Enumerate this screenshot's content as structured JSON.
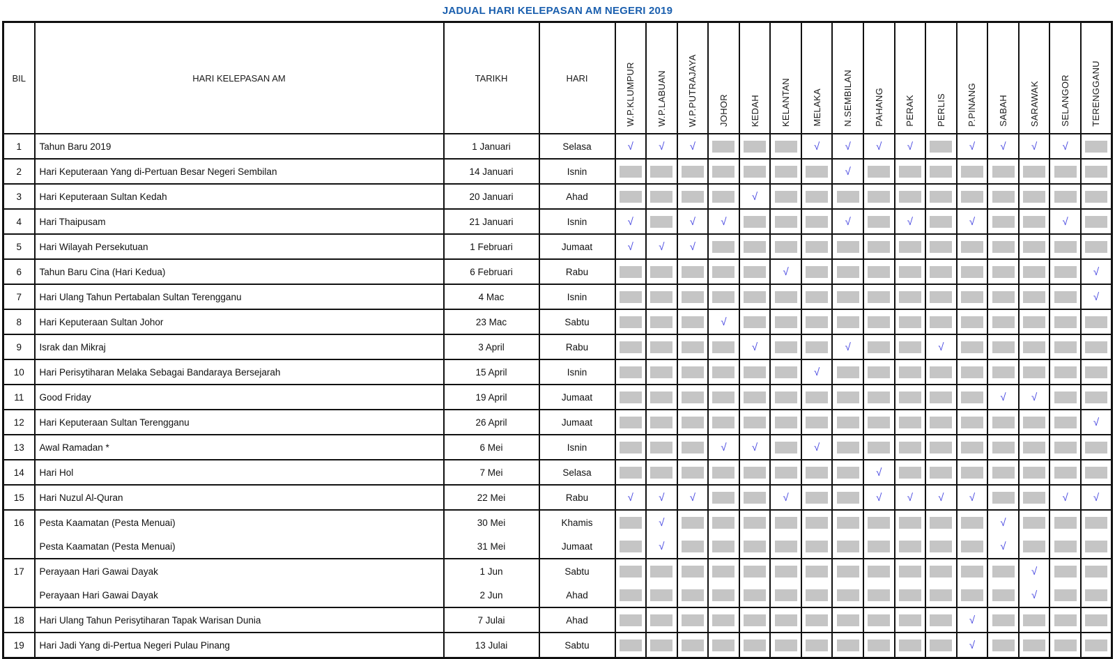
{
  "title": "JADUAL HARI KELEPASAN AM NEGERI 2019",
  "colors": {
    "title_blue": "#1a5fae",
    "check_blue": "#4646e0",
    "na_gray": "#c5c5c5",
    "border_black": "#111111"
  },
  "table": {
    "headers": {
      "bil": "BIL",
      "holiday": "HARI KELEPASAN AM",
      "date": "TARIKH",
      "day": "HARI"
    },
    "states": [
      "W.P.KLUMPUR",
      "W.P.LABUAN",
      "W.P.PUTRAJAYA",
      "JOHOR",
      "KEDAH",
      "KELANTAN",
      "MELAKA",
      "N.SEMBILAN",
      "PAHANG",
      "PERAK",
      "PERLIS",
      "P.PINANG",
      "SABAH",
      "SARAWAK",
      "SELANGOR",
      "TERENGGANU"
    ],
    "check_symbol": "√",
    "rows": [
      {
        "bil": "1",
        "entries": [
          {
            "name": "Tahun Baru 2019",
            "date": "1 Januari",
            "day": "Selasa"
          }
        ],
        "marks": [
          [
            1,
            1,
            1,
            0,
            0,
            0,
            1,
            1,
            1,
            1,
            0,
            1,
            1,
            1,
            1,
            0
          ]
        ]
      },
      {
        "bil": "2",
        "entries": [
          {
            "name": "Hari Keputeraan Yang di-Pertuan Besar Negeri Sembilan",
            "date": "14 Januari",
            "day": "Isnin"
          }
        ],
        "marks": [
          [
            0,
            0,
            0,
            0,
            0,
            0,
            0,
            1,
            0,
            0,
            0,
            0,
            0,
            0,
            0,
            0
          ]
        ]
      },
      {
        "bil": "3",
        "entries": [
          {
            "name": "Hari Keputeraan Sultan Kedah",
            "date": "20 Januari",
            "day": "Ahad"
          }
        ],
        "marks": [
          [
            0,
            0,
            0,
            0,
            1,
            0,
            0,
            0,
            0,
            0,
            0,
            0,
            0,
            0,
            0,
            0
          ]
        ]
      },
      {
        "bil": "4",
        "entries": [
          {
            "name": "Hari Thaipusam",
            "date": "21 Januari",
            "day": "Isnin"
          }
        ],
        "marks": [
          [
            1,
            0,
            1,
            1,
            0,
            0,
            0,
            1,
            0,
            1,
            0,
            1,
            0,
            0,
            1,
            0
          ]
        ]
      },
      {
        "bil": "5",
        "entries": [
          {
            "name": "Hari Wilayah Persekutuan",
            "date": "1 Februari",
            "day": "Jumaat"
          }
        ],
        "marks": [
          [
            1,
            1,
            1,
            0,
            0,
            0,
            0,
            0,
            0,
            0,
            0,
            0,
            0,
            0,
            0,
            0
          ]
        ]
      },
      {
        "bil": "6",
        "entries": [
          {
            "name": "Tahun Baru Cina (Hari Kedua)",
            "date": "6 Februari",
            "day": "Rabu"
          }
        ],
        "marks": [
          [
            0,
            0,
            0,
            0,
            0,
            1,
            0,
            0,
            0,
            0,
            0,
            0,
            0,
            0,
            0,
            1
          ]
        ]
      },
      {
        "bil": "7",
        "entries": [
          {
            "name": "Hari Ulang Tahun Pertabalan Sultan Terengganu",
            "date": "4 Mac",
            "day": "Isnin"
          }
        ],
        "marks": [
          [
            0,
            0,
            0,
            0,
            0,
            0,
            0,
            0,
            0,
            0,
            0,
            0,
            0,
            0,
            0,
            1
          ]
        ]
      },
      {
        "bil": "8",
        "entries": [
          {
            "name": "Hari Keputeraan Sultan Johor",
            "date": "23 Mac",
            "day": "Sabtu"
          }
        ],
        "marks": [
          [
            0,
            0,
            0,
            1,
            0,
            0,
            0,
            0,
            0,
            0,
            0,
            0,
            0,
            0,
            0,
            0
          ]
        ]
      },
      {
        "bil": "9",
        "entries": [
          {
            "name": "Israk dan Mikraj",
            "date": "3 April",
            "day": "Rabu"
          }
        ],
        "marks": [
          [
            0,
            0,
            0,
            0,
            1,
            0,
            0,
            1,
            0,
            0,
            1,
            0,
            0,
            0,
            0,
            0
          ]
        ]
      },
      {
        "bil": "10",
        "entries": [
          {
            "name": "Hari Perisytiharan Melaka Sebagai Bandaraya Bersejarah",
            "date": "15 April",
            "day": "Isnin"
          }
        ],
        "marks": [
          [
            0,
            0,
            0,
            0,
            0,
            0,
            1,
            0,
            0,
            0,
            0,
            0,
            0,
            0,
            0,
            0
          ]
        ]
      },
      {
        "bil": "11",
        "entries": [
          {
            "name": "Good Friday",
            "date": "19 April",
            "day": "Jumaat"
          }
        ],
        "marks": [
          [
            0,
            0,
            0,
            0,
            0,
            0,
            0,
            0,
            0,
            0,
            0,
            0,
            1,
            1,
            0,
            0
          ]
        ]
      },
      {
        "bil": "12",
        "entries": [
          {
            "name": "Hari Keputeraan Sultan Terengganu",
            "date": "26 April",
            "day": "Jumaat"
          }
        ],
        "marks": [
          [
            0,
            0,
            0,
            0,
            0,
            0,
            0,
            0,
            0,
            0,
            0,
            0,
            0,
            0,
            0,
            1
          ]
        ]
      },
      {
        "bil": "13",
        "entries": [
          {
            "name": "Awal Ramadan *",
            "date": "6 Mei",
            "day": "Isnin"
          }
        ],
        "marks": [
          [
            0,
            0,
            0,
            1,
            1,
            0,
            1,
            0,
            0,
            0,
            0,
            0,
            0,
            0,
            0,
            0
          ]
        ]
      },
      {
        "bil": "14",
        "entries": [
          {
            "name": "Hari Hol",
            "date": "7 Mei",
            "day": "Selasa"
          }
        ],
        "marks": [
          [
            0,
            0,
            0,
            0,
            0,
            0,
            0,
            0,
            1,
            0,
            0,
            0,
            0,
            0,
            0,
            0
          ]
        ]
      },
      {
        "bil": "15",
        "entries": [
          {
            "name": "Hari Nuzul Al-Quran",
            "date": "22 Mei",
            "day": "Rabu"
          }
        ],
        "marks": [
          [
            1,
            1,
            1,
            0,
            0,
            1,
            0,
            0,
            1,
            1,
            1,
            1,
            0,
            0,
            1,
            1
          ]
        ]
      },
      {
        "bil": "16",
        "entries": [
          {
            "name": "Pesta Kaamatan (Pesta Menuai)",
            "date": "30 Mei",
            "day": "Khamis"
          },
          {
            "name": "Pesta Kaamatan (Pesta Menuai)",
            "date": "31 Mei",
            "day": "Jumaat"
          }
        ],
        "marks": [
          [
            0,
            1,
            0,
            0,
            0,
            0,
            0,
            0,
            0,
            0,
            0,
            0,
            1,
            0,
            0,
            0
          ],
          [
            0,
            1,
            0,
            0,
            0,
            0,
            0,
            0,
            0,
            0,
            0,
            0,
            1,
            0,
            0,
            0
          ]
        ]
      },
      {
        "bil": "17",
        "entries": [
          {
            "name": "Perayaan Hari Gawai Dayak",
            "date": "1 Jun",
            "day": "Sabtu"
          },
          {
            "name": "Perayaan Hari Gawai Dayak",
            "date": "2 Jun",
            "day": "Ahad"
          }
        ],
        "marks": [
          [
            0,
            0,
            0,
            0,
            0,
            0,
            0,
            0,
            0,
            0,
            0,
            0,
            0,
            1,
            0,
            0
          ],
          [
            0,
            0,
            0,
            0,
            0,
            0,
            0,
            0,
            0,
            0,
            0,
            0,
            0,
            1,
            0,
            0
          ]
        ]
      },
      {
        "bil": "18",
        "entries": [
          {
            "name": "Hari Ulang Tahun Perisytiharan Tapak Warisan Dunia",
            "date": "7 Julai",
            "day": "Ahad"
          }
        ],
        "marks": [
          [
            0,
            0,
            0,
            0,
            0,
            0,
            0,
            0,
            0,
            0,
            0,
            1,
            0,
            0,
            0,
            0
          ]
        ]
      },
      {
        "bil": "19",
        "entries": [
          {
            "name": "Hari Jadi Yang di-Pertua Negeri Pulau Pinang",
            "date": "13 Julai",
            "day": "Sabtu"
          }
        ],
        "marks": [
          [
            0,
            0,
            0,
            0,
            0,
            0,
            0,
            0,
            0,
            0,
            0,
            1,
            0,
            0,
            0,
            0
          ]
        ]
      }
    ]
  }
}
